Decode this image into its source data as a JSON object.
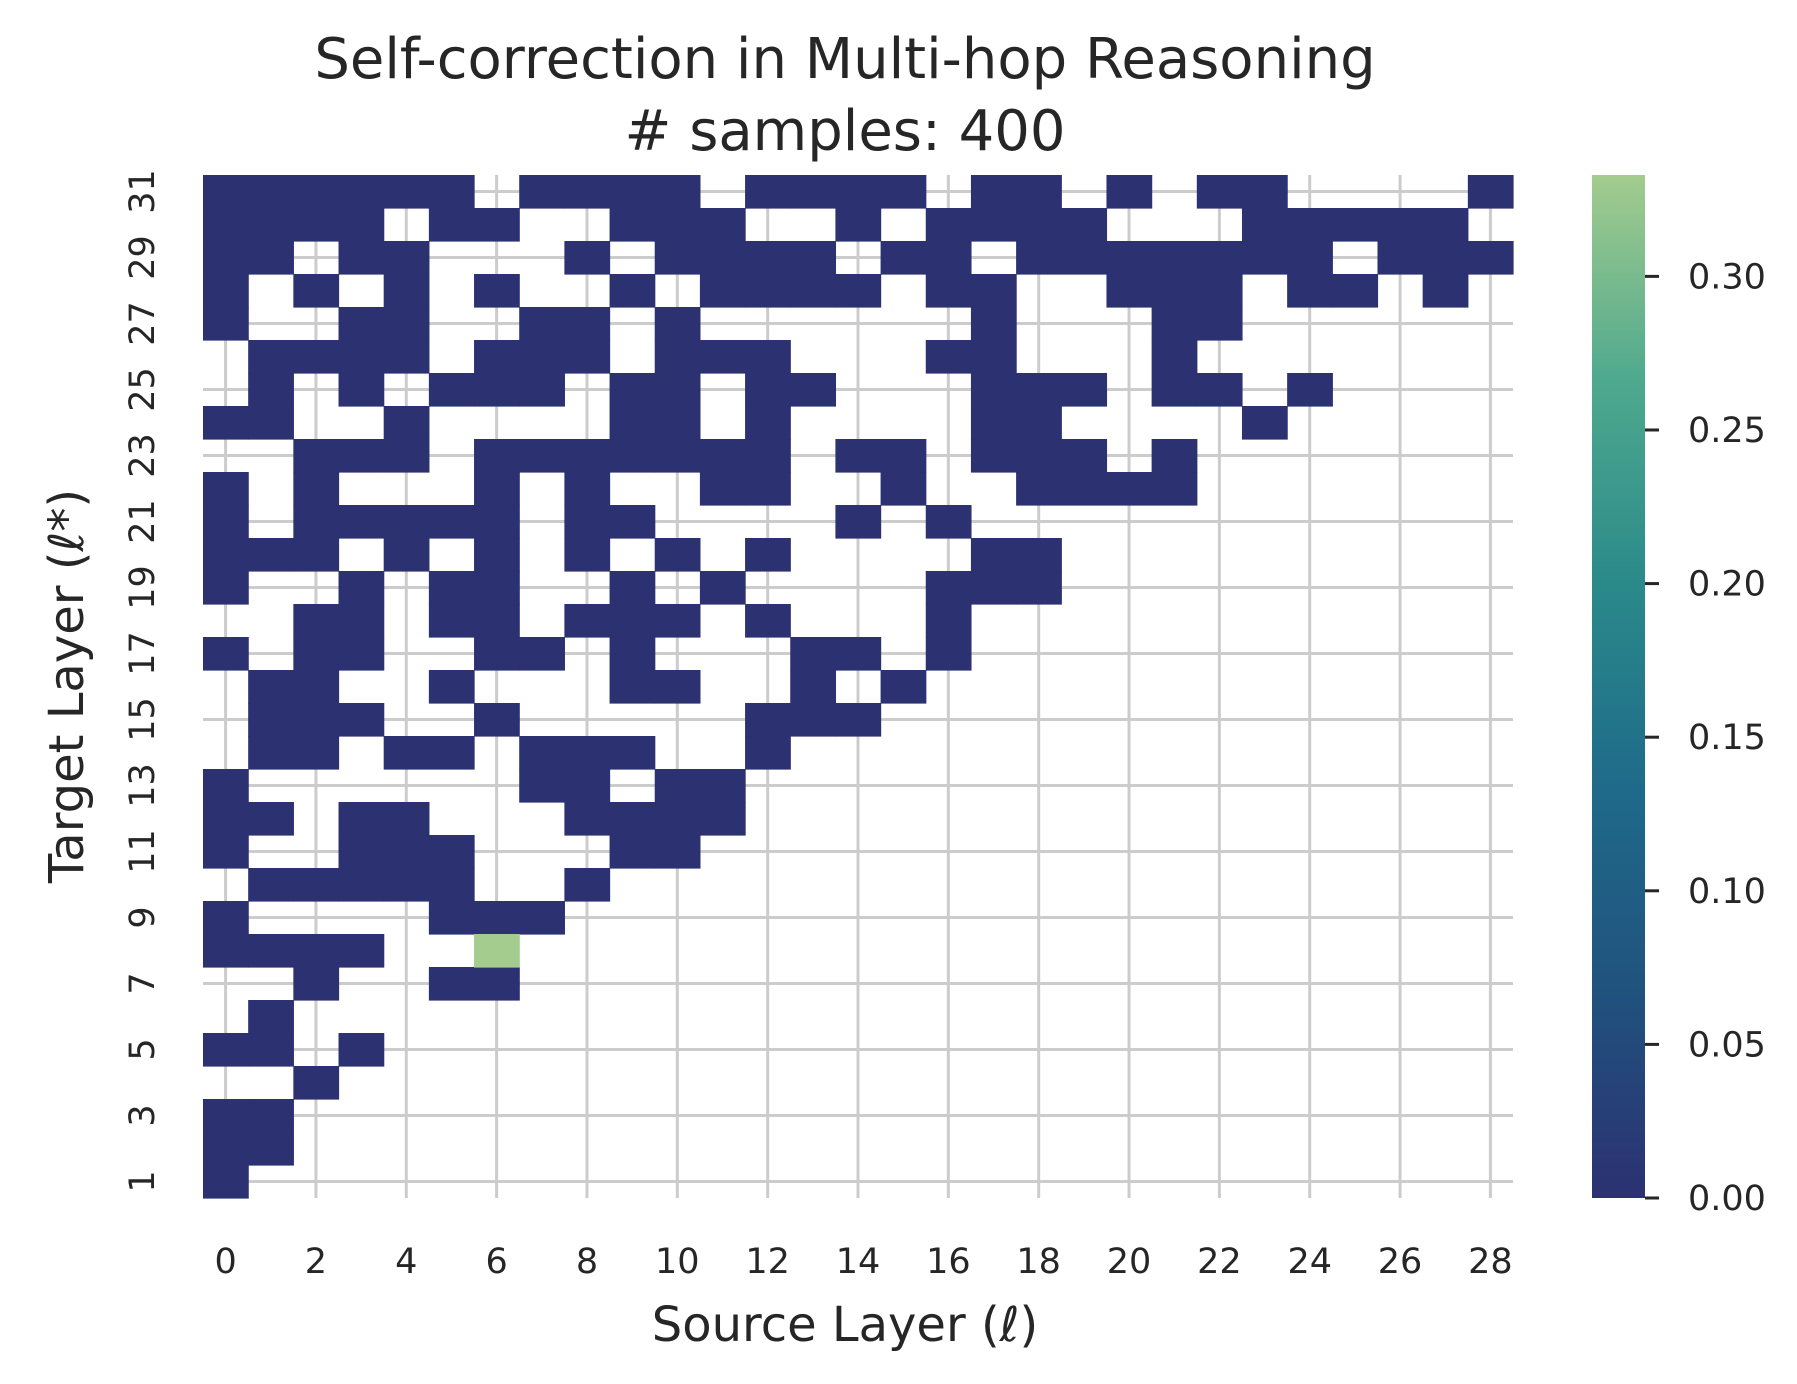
{
  "chart_data": {
    "type": "heatmap",
    "title": "Self-correction in Multi-hop Reasoning",
    "subtitle": "# samples: 400",
    "xlabel": "Source Layer (ℓ)",
    "ylabel": "Target Layer (ℓ*)",
    "x_range": [
      0,
      28
    ],
    "y_range": [
      1,
      31
    ],
    "x_ticks": [
      "0",
      "2",
      "4",
      "6",
      "8",
      "10",
      "12",
      "14",
      "16",
      "18",
      "20",
      "22",
      "24",
      "26",
      "28"
    ],
    "y_ticks": [
      "1",
      "3",
      "5",
      "7",
      "9",
      "11",
      "13",
      "15",
      "17",
      "19",
      "21",
      "23",
      "25",
      "27",
      "29",
      "31"
    ],
    "grid": true,
    "colormap": [
      "#2c3172",
      "#20527e",
      "#1f6a8a",
      "#2a8a8a",
      "#4fa98e",
      "#a3cc8e"
    ],
    "colorbar": {
      "ticks": [
        "0.00",
        "0.05",
        "0.10",
        "0.15",
        "0.20",
        "0.25",
        "0.30"
      ],
      "range": [
        0,
        0.333
      ]
    },
    "nonzero_cells": [
      {
        "x": 6,
        "y": 8,
        "value": 0.333
      }
    ],
    "zero_cells": {
      "31": [
        0,
        1,
        2,
        3,
        4,
        5,
        7,
        8,
        9,
        10,
        12,
        13,
        14,
        15,
        17,
        18,
        20,
        22,
        23,
        28
      ],
      "30": [
        0,
        1,
        2,
        3,
        5,
        6,
        9,
        10,
        11,
        14,
        16,
        17,
        18,
        19,
        23,
        24,
        25,
        26,
        27
      ],
      "29": [
        0,
        1,
        3,
        4,
        8,
        10,
        11,
        12,
        13,
        15,
        16,
        18,
        19,
        20,
        21,
        22,
        23,
        24,
        26,
        27,
        28
      ],
      "28": [
        0,
        2,
        4,
        6,
        9,
        11,
        12,
        13,
        14,
        16,
        17,
        20,
        21,
        22,
        24,
        25,
        27
      ],
      "27": [
        0,
        3,
        4,
        7,
        8,
        10,
        17,
        21,
        22
      ],
      "26": [
        1,
        2,
        3,
        4,
        6,
        7,
        8,
        10,
        11,
        12,
        16,
        17,
        21
      ],
      "25": [
        1,
        3,
        5,
        6,
        7,
        9,
        10,
        12,
        13,
        17,
        18,
        19,
        21,
        22,
        24
      ],
      "24": [
        0,
        1,
        4,
        9,
        10,
        12,
        17,
        18,
        23
      ],
      "23": [
        2,
        3,
        4,
        6,
        7,
        8,
        9,
        10,
        11,
        12,
        14,
        15,
        17,
        18,
        19,
        21
      ],
      "22": [
        0,
        2,
        6,
        8,
        11,
        12,
        15,
        18,
        19,
        20,
        21
      ],
      "21": [
        0,
        2,
        3,
        4,
        5,
        6,
        8,
        9,
        14,
        16
      ],
      "20": [
        0,
        1,
        2,
        4,
        6,
        8,
        10,
        12,
        17,
        18
      ],
      "19": [
        0,
        3,
        5,
        6,
        9,
        11,
        16,
        17,
        18
      ],
      "18": [
        2,
        3,
        5,
        6,
        8,
        9,
        10,
        12,
        16
      ],
      "17": [
        0,
        2,
        3,
        6,
        7,
        9,
        13,
        14,
        16
      ],
      "16": [
        1,
        2,
        5,
        9,
        10,
        13,
        15
      ],
      "15": [
        1,
        2,
        3,
        6,
        12,
        13,
        14
      ],
      "14": [
        1,
        2,
        4,
        5,
        7,
        8,
        9,
        12
      ],
      "13": [
        0,
        7,
        8,
        10,
        11
      ],
      "12": [
        0,
        1,
        3,
        4,
        8,
        9,
        10,
        11
      ],
      "11": [
        0,
        3,
        4,
        5,
        9,
        10
      ],
      "10": [
        1,
        2,
        3,
        4,
        5,
        8
      ],
      "9": [
        0,
        5,
        6,
        7
      ],
      "8": [
        0,
        1,
        2,
        3
      ],
      "7": [
        2,
        5,
        6
      ],
      "6": [
        1
      ],
      "5": [
        0,
        1,
        3
      ],
      "4": [
        2
      ],
      "3": [
        0,
        1
      ],
      "2": [
        0,
        1
      ],
      "1": [
        0
      ]
    }
  }
}
